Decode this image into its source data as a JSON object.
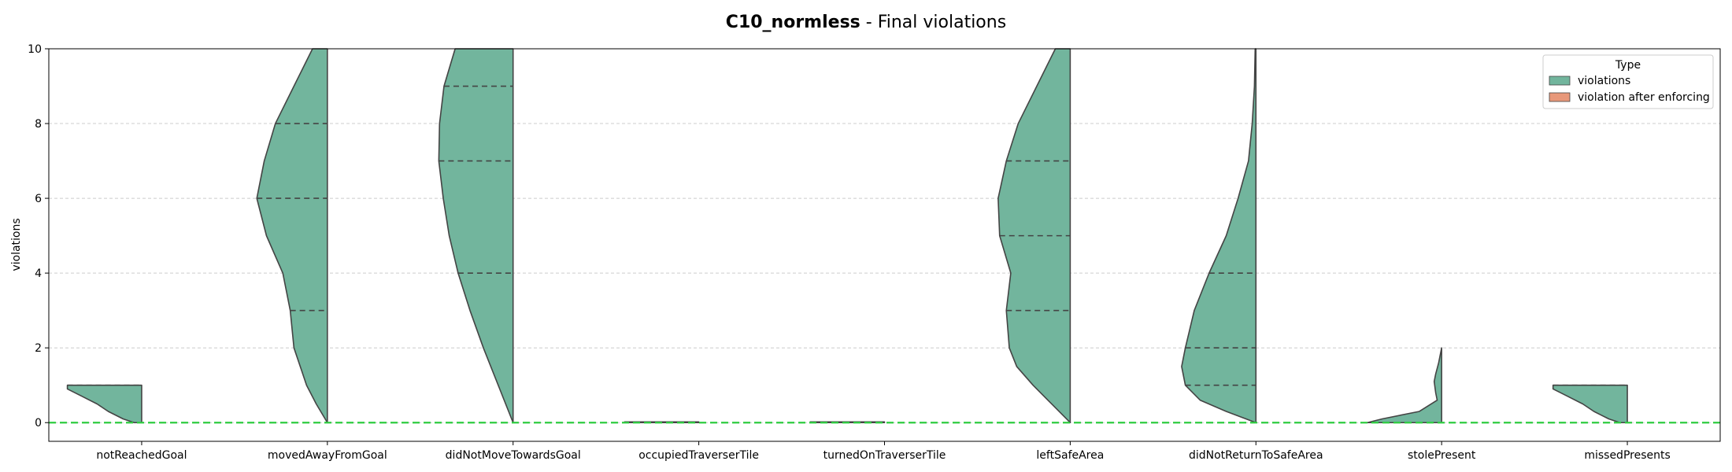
{
  "chart_data": {
    "type": "violin",
    "title_bold": "C10_normless",
    "title_rest": " - Final violations",
    "xlabel": "",
    "ylabel": "violations",
    "ylim": [
      -0.5,
      10
    ],
    "yticks": [
      "0",
      "2",
      "4",
      "6",
      "8",
      "10"
    ],
    "grid": "horizontal dashed",
    "legend_title": "Type",
    "legend_position": "top-right",
    "reference_line": {
      "y": 0,
      "color": "#2ecc40",
      "style": "dashed"
    },
    "categories": [
      "notReachedGoal",
      "movedAwayFromGoal",
      "didNotMoveTowardsGoal",
      "occupiedTraverserTile",
      "turnedOnTraverserTile",
      "leftSafeArea",
      "didNotReturnToSafeArea",
      "stolePresent",
      "missedPresents"
    ],
    "series": [
      {
        "name": "violations",
        "color": "#72b59d",
        "side": "left",
        "densities": [
          {
            "y": [
              0,
              0.1,
              0.3,
              0.5,
              0.7,
              0.9,
              1.0
            ],
            "w": [
              0.1,
              0.25,
              0.45,
              0.6,
              0.8,
              1.0,
              1.0
            ]
          },
          {
            "y": [
              0,
              0.5,
              1,
              2,
              3,
              4,
              5,
              6,
              7,
              8,
              9,
              10
            ],
            "w": [
              0.0,
              0.15,
              0.28,
              0.45,
              0.5,
              0.6,
              0.82,
              0.95,
              0.85,
              0.7,
              0.45,
              0.2
            ]
          },
          {
            "y": [
              0,
              1,
              2,
              3,
              4,
              5,
              6,
              7,
              8,
              9,
              10
            ],
            "w": [
              0.0,
              0.2,
              0.4,
              0.58,
              0.74,
              0.86,
              0.94,
              1.0,
              0.99,
              0.93,
              0.78
            ]
          },
          {
            "y": [
              0,
              0.02
            ],
            "w": [
              1.0,
              1.0
            ]
          },
          {
            "y": [
              0,
              0.02
            ],
            "w": [
              1.0,
              1.0
            ]
          },
          {
            "y": [
              0,
              0.5,
              1,
              1.5,
              2,
              3,
              4,
              5,
              6,
              7,
              8,
              9,
              10
            ],
            "w": [
              0.0,
              0.25,
              0.5,
              0.72,
              0.82,
              0.86,
              0.8,
              0.95,
              0.97,
              0.86,
              0.7,
              0.45,
              0.2
            ]
          },
          {
            "y": [
              0,
              0.3,
              0.6,
              1,
              1.5,
              2,
              3,
              4,
              5,
              6,
              7,
              8,
              9,
              10
            ],
            "w": [
              0.0,
              0.4,
              0.75,
              0.95,
              1.0,
              0.95,
              0.83,
              0.63,
              0.4,
              0.24,
              0.1,
              0.05,
              0.02,
              0.01
            ]
          },
          {
            "y": [
              0,
              0.1,
              0.3,
              0.6,
              0.8,
              1.1,
              1.3,
              1.6,
              2.0
            ],
            "w": [
              1.0,
              0.8,
              0.3,
              0.06,
              0.08,
              0.1,
              0.08,
              0.04,
              0.0
            ]
          },
          {
            "y": [
              0,
              0.1,
              0.3,
              0.5,
              0.7,
              0.9,
              1.0
            ],
            "w": [
              0.1,
              0.25,
              0.45,
              0.6,
              0.8,
              1.0,
              1.0
            ]
          }
        ],
        "quartiles": [
          [
            1,
            1,
            1
          ],
          [
            3,
            6,
            8
          ],
          [
            4,
            7,
            9
          ],
          [
            0,
            0,
            0
          ],
          [
            0,
            0,
            0
          ],
          [
            3,
            5,
            7
          ],
          [
            1,
            2,
            4
          ],
          [
            0,
            0,
            0
          ],
          [
            1,
            1,
            1
          ]
        ]
      },
      {
        "name": "violation after enforcing",
        "color": "#e8987a",
        "side": "right",
        "values": []
      }
    ]
  }
}
